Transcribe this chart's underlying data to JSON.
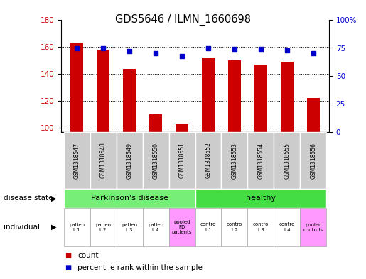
{
  "title": "GDS5646 / ILMN_1660698",
  "samples": [
    "GSM1318547",
    "GSM1318548",
    "GSM1318549",
    "GSM1318550",
    "GSM1318551",
    "GSM1318552",
    "GSM1318553",
    "GSM1318554",
    "GSM1318555",
    "GSM1318556"
  ],
  "count_values": [
    163,
    158,
    144,
    110,
    103,
    152,
    150,
    147,
    149,
    122
  ],
  "percentile_values": [
    75,
    75,
    72,
    70,
    68,
    75,
    74,
    74,
    73,
    70
  ],
  "ylim_left": [
    97,
    180
  ],
  "ylim_right": [
    0,
    100
  ],
  "yticks_left": [
    100,
    120,
    140,
    160,
    180
  ],
  "yticks_right": [
    0,
    25,
    50,
    75,
    100
  ],
  "ytick_labels_right": [
    "0",
    "25",
    "50",
    "75",
    "100%"
  ],
  "bar_color": "#cc0000",
  "dot_color": "#0000cc",
  "individual_labels": [
    "patien\nt 1",
    "patien\nt 2",
    "patien\nt 3",
    "patien\nt 4",
    "pooled\nPD\npatients",
    "contro\nl 1",
    "contro\nl 2",
    "contro\nl 3",
    "contro\nl 4",
    "pooled\ncontrols"
  ],
  "individual_colors": [
    "#ffffff",
    "#ffffff",
    "#ffffff",
    "#ffffff",
    "#ff99ff",
    "#ffffff",
    "#ffffff",
    "#ffffff",
    "#ffffff",
    "#ff99ff"
  ],
  "sample_bg_color": "#cccccc",
  "legend_count_color": "#cc0000",
  "legend_dot_color": "#0000cc",
  "left_label_disease_state": "disease state",
  "left_label_individual": "individual",
  "parkinsons_color": "#77ee77",
  "healthy_color": "#44dd44"
}
